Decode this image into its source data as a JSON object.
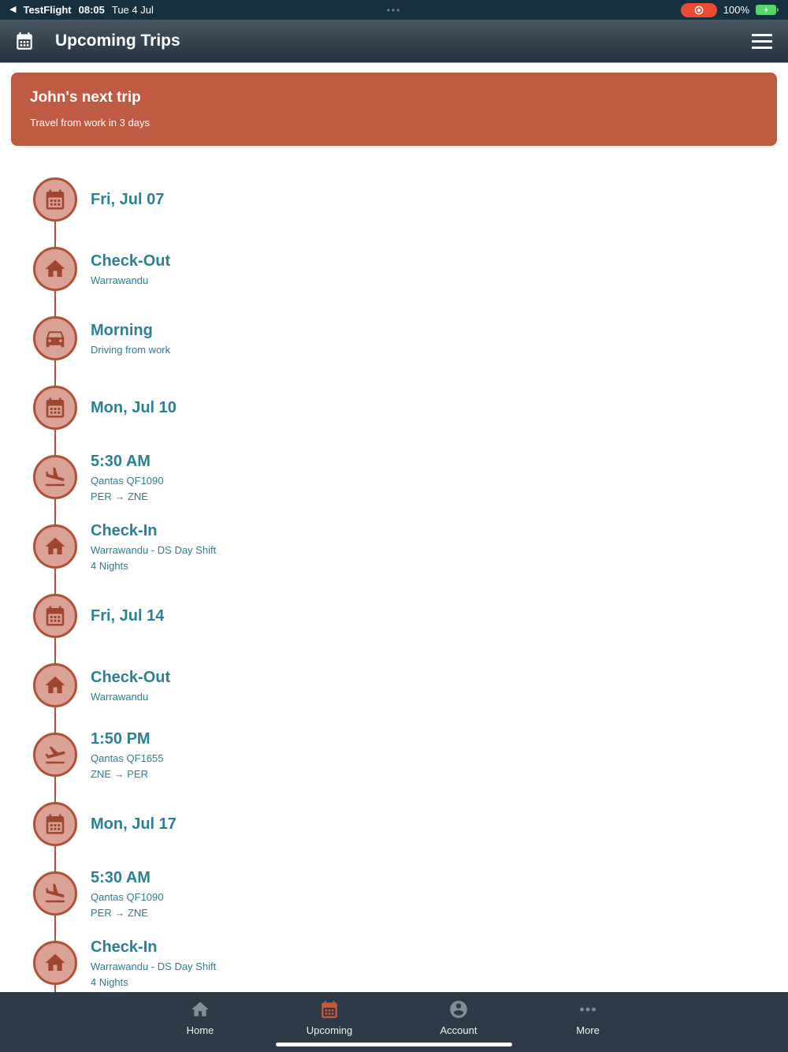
{
  "status_bar": {
    "back_app": "TestFlight",
    "time": "08:05",
    "date": "Tue 4 Jul",
    "battery_percent": "100%"
  },
  "nav": {
    "title": "Upcoming Trips"
  },
  "banner": {
    "title": "John's next trip",
    "subtitle": "Travel from work in 3 days"
  },
  "timeline": [
    {
      "icon": "calendar",
      "title": "Fri, Jul 07",
      "lines": []
    },
    {
      "icon": "house",
      "title": "Check-Out",
      "lines": [
        "Warrawandu"
      ]
    },
    {
      "icon": "car",
      "title": "Morning",
      "lines": [
        "Driving from work"
      ]
    },
    {
      "icon": "calendar",
      "title": "Mon, Jul 10",
      "lines": []
    },
    {
      "icon": "plane-landing",
      "title": "5:30 AM",
      "lines": [
        "Qantas QF1090",
        "PER → ZNE"
      ]
    },
    {
      "icon": "house",
      "title": "Check-In",
      "lines": [
        "Warrawandu - DS Day Shift",
        "4 Nights"
      ]
    },
    {
      "icon": "calendar",
      "title": "Fri, Jul 14",
      "lines": []
    },
    {
      "icon": "house",
      "title": "Check-Out",
      "lines": [
        "Warrawandu"
      ]
    },
    {
      "icon": "plane-takeoff",
      "title": "1:50 PM",
      "lines": [
        "Qantas QF1655",
        "ZNE → PER"
      ]
    },
    {
      "icon": "calendar",
      "title": "Mon, Jul 17",
      "lines": []
    },
    {
      "icon": "plane-landing",
      "title": "5:30 AM",
      "lines": [
        "Qantas QF1090",
        "PER → ZNE"
      ]
    },
    {
      "icon": "house",
      "title": "Check-In",
      "lines": [
        "Warrawandu - DS Day Shift",
        "4 Nights"
      ]
    }
  ],
  "tab_bar": [
    {
      "icon": "home",
      "label": "Home",
      "active": false
    },
    {
      "icon": "calendar",
      "label": "Upcoming",
      "active": true
    },
    {
      "icon": "account",
      "label": "Account",
      "active": false
    },
    {
      "icon": "more",
      "label": "More",
      "active": false
    }
  ],
  "colors": {
    "terracotta": "#c05b43",
    "timeline_circle_fill": "#d9a295",
    "timeline_line": "#b05138",
    "teal_text": "#2d7f93",
    "header_dark": "#243340",
    "tab_bar_bg": "#2c3b47",
    "tab_active_icon": "#cc5a3a",
    "record_pill": "#ec4a33",
    "battery_green": "#53d769"
  }
}
